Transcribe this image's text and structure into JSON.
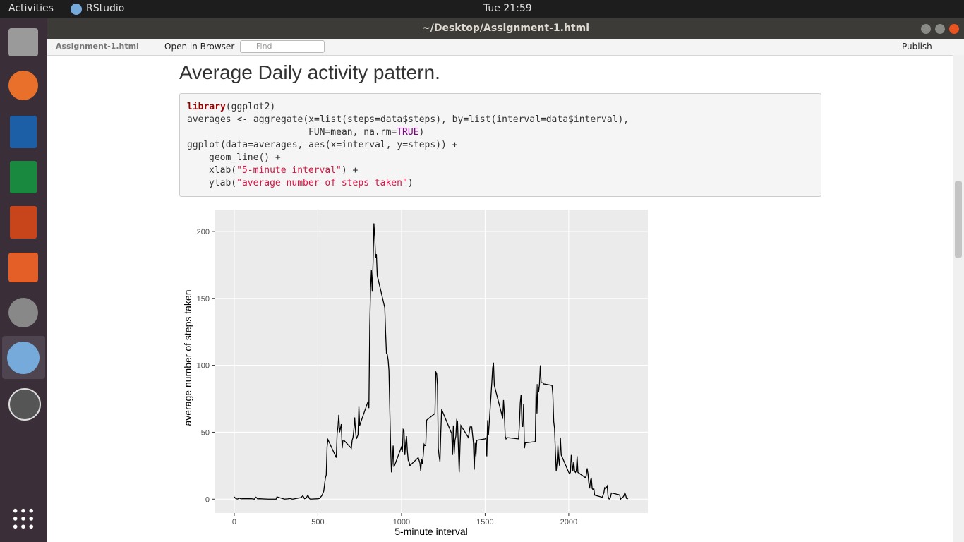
{
  "topbar": {
    "activities": "Activities",
    "app": "RStudio",
    "clock": "Tue 21:59"
  },
  "window": {
    "title": "~/Desktop/Assignment-1.html"
  },
  "toolbar": {
    "file": "Assignment-1.html",
    "open": "Open in Browser",
    "find": "Find",
    "publish": "Publish"
  },
  "content": {
    "heading": "Average Daily activity pattern.",
    "code": [
      [
        "library",
        "(ggplot2)"
      ],
      [
        "averages <- aggregate(x=list(steps=data$steps), by=list(interval=data$interval),"
      ],
      [
        "FUN=mean, na.rm=",
        "TRUE",
        ")"
      ],
      [
        "ggplot(data=averages, aes(x=interval, y=steps)) +"
      ],
      [
        "geom_line() +"
      ],
      [
        "xlab(",
        "\"5-minute interval\"",
        ") +"
      ],
      [
        "ylab(",
        "\"average number of steps taken\"",
        ")"
      ]
    ]
  },
  "chart_data": {
    "type": "line",
    "x_label": "5-minute interval",
    "y_label": "average number of steps taken",
    "xlim": [
      -118,
      2473
    ],
    "ylim": [
      -10.4,
      216.3
    ],
    "xticks": [
      0,
      500,
      1000,
      1500,
      2000
    ],
    "yticks": [
      0,
      50,
      100,
      150,
      200
    ],
    "grid": true,
    "color": "#000000",
    "x": [
      0,
      10,
      20,
      30,
      40,
      50,
      100,
      110,
      120,
      130,
      140,
      150,
      200,
      250,
      255,
      300,
      320,
      335,
      345,
      350,
      400,
      410,
      420,
      430,
      440,
      450,
      455,
      500,
      510,
      525,
      535,
      545,
      550,
      555,
      560,
      610,
      615,
      620,
      625,
      630,
      640,
      645,
      650,
      655,
      700,
      705,
      710,
      715,
      720,
      725,
      730,
      740,
      745,
      750,
      755,
      800,
      805,
      810,
      815,
      820,
      825,
      830,
      835,
      840,
      845,
      850,
      855,
      900,
      905,
      910,
      915,
      920,
      925,
      930,
      935,
      940,
      945,
      950,
      955,
      1000,
      1005,
      1010,
      1015,
      1020,
      1025,
      1030,
      1035,
      1040,
      1045,
      1050,
      1100,
      1110,
      1115,
      1120,
      1125,
      1130,
      1135,
      1140,
      1145,
      1150,
      1200,
      1205,
      1210,
      1215,
      1220,
      1225,
      1230,
      1235,
      1240,
      1300,
      1305,
      1310,
      1315,
      1320,
      1325,
      1330,
      1335,
      1340,
      1345,
      1350,
      1355,
      1400,
      1410,
      1420,
      1430,
      1435,
      1440,
      1445,
      1450,
      1500,
      1505,
      1510,
      1515,
      1520,
      1540,
      1545,
      1550,
      1555,
      1600,
      1605,
      1610,
      1615,
      1620,
      1625,
      1630,
      1700,
      1705,
      1710,
      1715,
      1720,
      1725,
      1730,
      1735,
      1740,
      1800,
      1805,
      1810,
      1815,
      1820,
      1825,
      1830,
      1835,
      1845,
      1850,
      1855,
      1900,
      1905,
      1910,
      1915,
      1920,
      1925,
      1930,
      1935,
      1940,
      1945,
      1950,
      1955,
      2000,
      2005,
      2010,
      2015,
      2020,
      2025,
      2030,
      2035,
      2040,
      2045,
      2050,
      2055,
      2100,
      2105,
      2110,
      2115,
      2120,
      2125,
      2130,
      2135,
      2140,
      2145,
      2150,
      2155,
      2200,
      2205,
      2210,
      2215,
      2220,
      2225,
      2230,
      2235,
      2240,
      2245,
      2250,
      2255,
      2300,
      2305,
      2310,
      2315,
      2320,
      2325,
      2330,
      2335,
      2340,
      2345,
      2350,
      2355
    ],
    "values": [
      1.7,
      0.3,
      0.1,
      0.8,
      0.2,
      0.3,
      0.3,
      0.2,
      0,
      1.5,
      0.2,
      0.3,
      0,
      0,
      1.7,
      0,
      0.2,
      0.5,
      0.1,
      0,
      1.2,
      2.6,
      0.3,
      0.8,
      3,
      0.3,
      0,
      0.3,
      0.5,
      2.9,
      6,
      16,
      18,
      39,
      44.5,
      31,
      49,
      54,
      63,
      50,
      56,
      38,
      44,
      44,
      38,
      44,
      46,
      52,
      61,
      51,
      45,
      48,
      69,
      55,
      57,
      73,
      68,
      129,
      158,
      171,
      155,
      177,
      206,
      196,
      180,
      183,
      167,
      143,
      124,
      109,
      108,
      104,
      96,
      67,
      38,
      20,
      27,
      40,
      24,
      39,
      35,
      52,
      51,
      33,
      42,
      47,
      36,
      29,
      28,
      25,
      31,
      27,
      21,
      30,
      26,
      33,
      41,
      40,
      40,
      59,
      64,
      95,
      94,
      85,
      38,
      32,
      28,
      50,
      67,
      49,
      33,
      55,
      34,
      44,
      47,
      59,
      58,
      39,
      20,
      40,
      55,
      46,
      54,
      54,
      42,
      22,
      42,
      32,
      44,
      45,
      46,
      32,
      59,
      48,
      87,
      98,
      102,
      85,
      63,
      60,
      74,
      64,
      47,
      45,
      46,
      45,
      56,
      72,
      78,
      56,
      54,
      71,
      38,
      42,
      43,
      86,
      64,
      86,
      80,
      86,
      100,
      87,
      87,
      86,
      86,
      85,
      78,
      58,
      53,
      36,
      21,
      27,
      40,
      30,
      25,
      46,
      33,
      20,
      19,
      20,
      33,
      27,
      21,
      28,
      21,
      20,
      21,
      32,
      20,
      16,
      18,
      23,
      19,
      12,
      8,
      14,
      16,
      8,
      7,
      8,
      3,
      1.4,
      3,
      4.8,
      8.5,
      7.8,
      8.7,
      9.8,
      2.2,
      0.3,
      0.1,
      1.6,
      4.6,
      3.3,
      2.8,
      0,
      0.8,
      1,
      1.6,
      2.6,
      4.7,
      3.3,
      0.6,
      0.2,
      1.1
    ]
  }
}
